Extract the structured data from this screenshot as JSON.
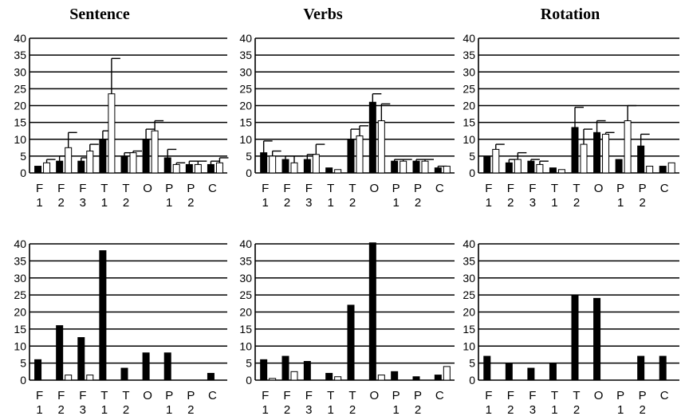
{
  "chart_data": [
    {
      "type": "bar",
      "title": "Sentence",
      "xlabel": "",
      "ylabel": "",
      "ylim": [
        0,
        40
      ],
      "yticks": [
        "40",
        "35",
        "30",
        "25",
        "20",
        "15",
        "10",
        "5",
        "0"
      ],
      "categories": [
        [
          "F",
          "1"
        ],
        [
          "F",
          "2"
        ],
        [
          "F",
          "3"
        ],
        [
          "T",
          "1"
        ],
        [
          "T",
          "2"
        ],
        [
          "O",
          ""
        ],
        [
          "P",
          "1"
        ],
        [
          "P",
          "2"
        ],
        [
          "C",
          ""
        ]
      ],
      "grid": true,
      "series": [
        {
          "fill": "#000000",
          "values": [
            2,
            3.5,
            3.5,
            10,
            5,
            10,
            4.5,
            2.5,
            2.5
          ],
          "errors": [
            0,
            1.5,
            1,
            2.5,
            1,
            3,
            2.5,
            1,
            1
          ]
        },
        {
          "fill": "#ffffff",
          "values": [
            3,
            7.5,
            6.5,
            23.5,
            6,
            12.5,
            2.5,
            2.5,
            3
          ],
          "errors": [
            1,
            4.5,
            2,
            10.5,
            0.5,
            3,
            0.5,
            1,
            1.5
          ]
        }
      ]
    },
    {
      "type": "bar",
      "title": "Verbs",
      "xlabel": "",
      "ylabel": "",
      "ylim": [
        0,
        40
      ],
      "yticks": [
        "40",
        "35",
        "30",
        "25",
        "20",
        "15",
        "10",
        "5",
        "0"
      ],
      "categories": [
        [
          "F",
          "1"
        ],
        [
          "F",
          "2"
        ],
        [
          "F",
          "3"
        ],
        [
          "T",
          "1"
        ],
        [
          "T",
          "2"
        ],
        [
          "O",
          ""
        ],
        [
          "P",
          "1"
        ],
        [
          "P",
          "2"
        ],
        [
          "C",
          ""
        ]
      ],
      "grid": true,
      "series": [
        {
          "fill": "#000000",
          "values": [
            6,
            4,
            4,
            1.5,
            10,
            21,
            3.5,
            3.5,
            1.5
          ],
          "errors": [
            3.5,
            1,
            1.5,
            0,
            3,
            2.5,
            0.5,
            0.5,
            0.5
          ]
        },
        {
          "fill": "#ffffff",
          "values": [
            5,
            3,
            5.5,
            1,
            11,
            15.5,
            3.5,
            3.5,
            2
          ],
          "errors": [
            1.5,
            2,
            3,
            0,
            3,
            5,
            0.5,
            0.5,
            0
          ]
        }
      ]
    },
    {
      "type": "bar",
      "title": "Rotation",
      "xlabel": "",
      "ylabel": "",
      "ylim": [
        0,
        40
      ],
      "yticks": [
        "40",
        "35",
        "30",
        "25",
        "20",
        "15",
        "10",
        "5",
        "0"
      ],
      "categories": [
        [
          "F",
          "1"
        ],
        [
          "F",
          "2"
        ],
        [
          "F",
          "3"
        ],
        [
          "T",
          "1"
        ],
        [
          "T",
          "2"
        ],
        [
          "O",
          ""
        ],
        [
          "P",
          "1"
        ],
        [
          "P",
          "2"
        ],
        [
          "C",
          ""
        ]
      ],
      "grid": true,
      "series": [
        {
          "fill": "#000000",
          "values": [
            5,
            3,
            3.5,
            1.5,
            13.5,
            12,
            4,
            8,
            2
          ],
          "errors": [
            0,
            1,
            0.5,
            0,
            6,
            3.5,
            0,
            3.5,
            0
          ]
        },
        {
          "fill": "#ffffff",
          "values": [
            7,
            4,
            2.5,
            1,
            8.5,
            11.5,
            15.5,
            2,
            3
          ],
          "errors": [
            1.5,
            2,
            1,
            0,
            4.5,
            0.5,
            4.5,
            0,
            0
          ]
        }
      ]
    },
    {
      "type": "bar",
      "title": "",
      "xlabel": "",
      "ylabel": "",
      "ylim": [
        0,
        40
      ],
      "yticks": [
        "40",
        "35",
        "30",
        "25",
        "20",
        "15",
        "10",
        "5",
        "0"
      ],
      "categories": [
        [
          "F",
          "1"
        ],
        [
          "F",
          "2"
        ],
        [
          "F",
          "3"
        ],
        [
          "T",
          "1"
        ],
        [
          "T",
          "2"
        ],
        [
          "O",
          ""
        ],
        [
          "P",
          "1"
        ],
        [
          "P",
          "2"
        ],
        [
          "C",
          ""
        ]
      ],
      "grid": true,
      "series": [
        {
          "fill": "#000000",
          "values": [
            6,
            16,
            12.5,
            38,
            3.5,
            8,
            8,
            0,
            2
          ],
          "errors": [
            0,
            0,
            0,
            0,
            0,
            0,
            0,
            0,
            0
          ]
        },
        {
          "fill": "#ffffff",
          "values": [
            0,
            1.5,
            1.5,
            0,
            0,
            0,
            0,
            0,
            0
          ],
          "errors": [
            0,
            0,
            0,
            0,
            0,
            0,
            0,
            0,
            0
          ]
        }
      ]
    },
    {
      "type": "bar",
      "title": "",
      "xlabel": "",
      "ylabel": "",
      "ylim": [
        0,
        40
      ],
      "yticks": [
        "40",
        "35",
        "30",
        "25",
        "20",
        "15",
        "10",
        "5",
        "0"
      ],
      "categories": [
        [
          "F",
          "1"
        ],
        [
          "F",
          "2"
        ],
        [
          "F",
          "3"
        ],
        [
          "T",
          "1"
        ],
        [
          "T",
          "2"
        ],
        [
          "O",
          ""
        ],
        [
          "P",
          "1"
        ],
        [
          "P",
          "2"
        ],
        [
          "C",
          ""
        ]
      ],
      "grid": true,
      "series": [
        {
          "fill": "#000000",
          "values": [
            6,
            7,
            5.5,
            2,
            22,
            41,
            2.5,
            1,
            1.5
          ],
          "errors": [
            0,
            0,
            0,
            0,
            0,
            0,
            0,
            0,
            0
          ]
        },
        {
          "fill": "#ffffff",
          "values": [
            0.5,
            2.5,
            0,
            1,
            0,
            1.5,
            0,
            0,
            4
          ],
          "errors": [
            0,
            0,
            0,
            0,
            0,
            0,
            0,
            0,
            0
          ]
        }
      ]
    },
    {
      "type": "bar",
      "title": "",
      "xlabel": "",
      "ylabel": "",
      "ylim": [
        0,
        40
      ],
      "yticks": [
        "40",
        "35",
        "30",
        "25",
        "20",
        "15",
        "10",
        "5",
        "0"
      ],
      "categories": [
        [
          "F",
          "1"
        ],
        [
          "F",
          "2"
        ],
        [
          "F",
          "3"
        ],
        [
          "T",
          "1"
        ],
        [
          "T",
          "2"
        ],
        [
          "O",
          ""
        ],
        [
          "P",
          "1"
        ],
        [
          "P",
          "2"
        ],
        [
          "C",
          ""
        ]
      ],
      "grid": true,
      "series": [
        {
          "fill": "#000000",
          "values": [
            7,
            5,
            3.5,
            5,
            25,
            24,
            0,
            7,
            7
          ],
          "errors": [
            0,
            0,
            0,
            0,
            0,
            0,
            0,
            0,
            0
          ]
        },
        {
          "fill": "#ffffff",
          "values": [
            0,
            0,
            0,
            0,
            0,
            0,
            0,
            0,
            0
          ],
          "errors": [
            0,
            0,
            0,
            0,
            0,
            0,
            0,
            0,
            0
          ]
        }
      ]
    }
  ]
}
